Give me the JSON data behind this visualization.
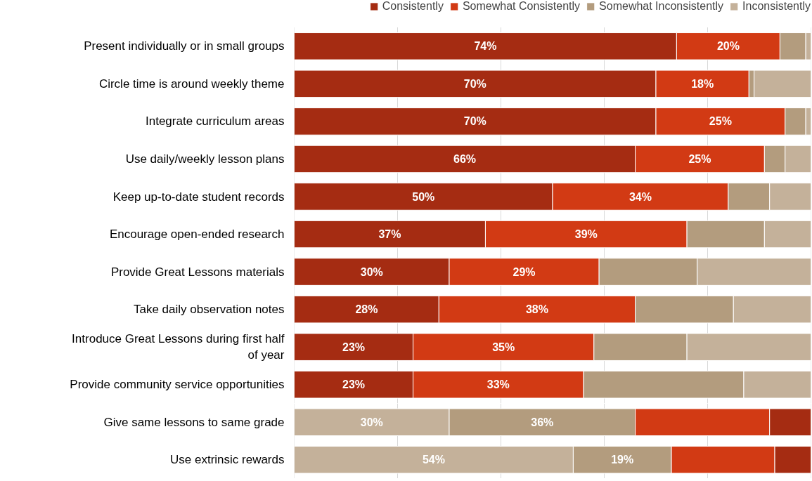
{
  "chart_data": [
    {
      "type": "bar",
      "orientation": "horizontal",
      "stacked": true,
      "categories": [
        "Present individually or in small groups",
        "Circle time is around weekly theme",
        "Integrate curriculum areas",
        "Use daily/weekly lesson plans",
        "Keep up-to-date student records",
        "Encourage open-ended research",
        "Provide Great Lessons materials",
        "Take daily observation notes",
        "Introduce Great Lessons during first half of year",
        "Provide community service opportunities"
      ],
      "series": [
        {
          "name": "Consistently",
          "color": "#a52c12",
          "values": [
            74,
            70,
            70,
            66,
            50,
            37,
            30,
            28,
            23,
            23
          ],
          "value_labels": [
            "74%",
            "70%",
            "70%",
            "66%",
            "50%",
            "37%",
            "30%",
            "28%",
            "23%",
            "23%"
          ]
        },
        {
          "name": "Somewhat Consistently",
          "color": "#d23a14",
          "values": [
            20,
            18,
            25,
            25,
            34,
            39,
            29,
            38,
            35,
            33
          ],
          "value_labels": [
            "20%",
            "18%",
            "25%",
            "25%",
            "34%",
            "39%",
            "29%",
            "38%",
            "35%",
            "33%"
          ]
        },
        {
          "name": "Somewhat Inconsistently",
          "color": "#b39c7e",
          "values": [
            5,
            1,
            4,
            4,
            8,
            15,
            19,
            19,
            18,
            31
          ]
        },
        {
          "name": "Inconsistently",
          "color": "#c4b19a",
          "values": [
            1,
            11,
            1,
            5,
            8,
            9,
            22,
            15,
            24,
            13
          ]
        }
      ],
      "xlim": [
        0,
        100
      ],
      "xticks": [
        {
          "value": 0,
          "label": null
        },
        {
          "value": 20,
          "label": null
        },
        {
          "value": 40,
          "label": null
        },
        {
          "value": 60,
          "label": null
        },
        {
          "value": 80,
          "label": null
        },
        {
          "value": 100,
          "label": null
        }
      ],
      "grid": "x",
      "legend": "top right",
      "tick_labels": "y"
    },
    {
      "type": "bar",
      "orientation": "horizontal",
      "stacked": true,
      "categories": [
        "Give same lessons to same grade",
        "Use extrinsic rewards"
      ],
      "series": [
        {
          "color": "#c4b19a",
          "values": [
            30,
            54
          ],
          "value_labels": [
            "30%",
            "54%"
          ]
        },
        {
          "color": "#b39c7e",
          "values": [
            36,
            19
          ],
          "value_labels": [
            "36%",
            "19%"
          ]
        },
        {
          "color": "#d23a14",
          "values": [
            26,
            20
          ]
        },
        {
          "color": "#a52c12",
          "values": [
            8,
            7
          ]
        }
      ],
      "xlim": [
        0,
        100
      ],
      "xticks": [
        {
          "value": 0,
          "label": null
        },
        {
          "value": 20,
          "label": null
        },
        {
          "value": 40,
          "label": null
        },
        {
          "value": 60,
          "label": null
        },
        {
          "value": 80,
          "label": null
        },
        {
          "value": 100,
          "label": null
        }
      ],
      "grid": "x",
      "tick_labels": "y"
    }
  ]
}
